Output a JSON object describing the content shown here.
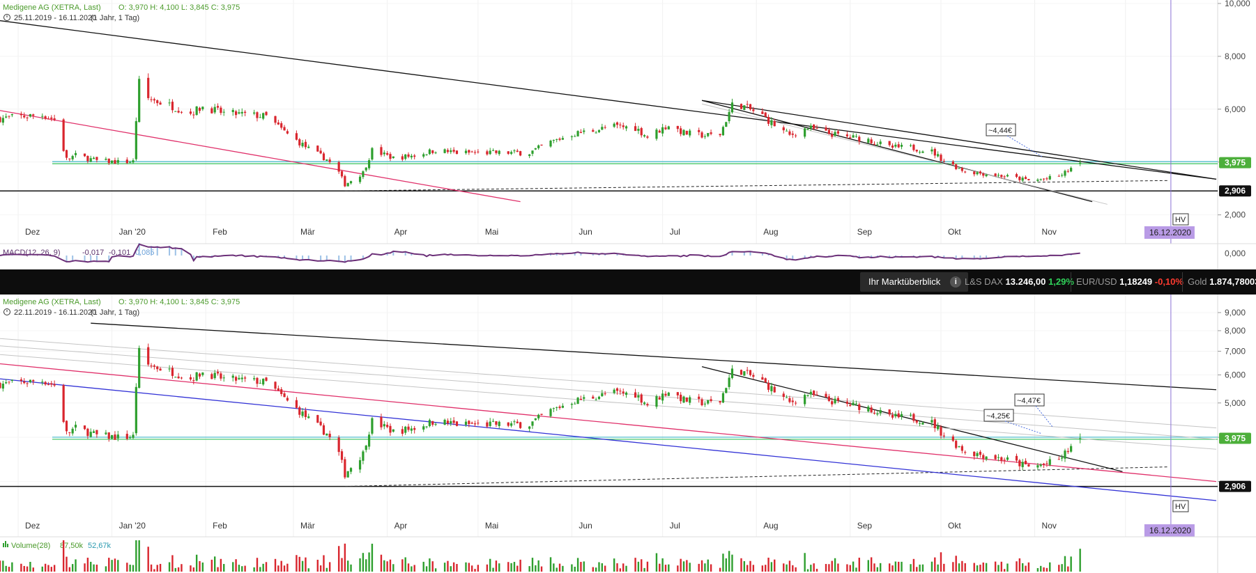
{
  "colors": {
    "up": "#2e9f2e",
    "down": "#d9262e",
    "trend_black": "#111111",
    "trend_pink": "#e0306a",
    "trend_blue": "#3232d6",
    "trend_gray": "#c4c4c4",
    "support_green": "#35c25a",
    "support_teal": "#3fb6c8",
    "vline": "#8a72d6",
    "hv_date_bg": "#b99be6",
    "volume_up": "#2e9f2e",
    "volume_down": "#d9262e",
    "macd_line": "#6b2f78",
    "macd_hist": "#9cc1e6"
  },
  "chart_data": [
    {
      "type": "candlestick",
      "instrument_label": "Medigene AG (XETRA, Last)",
      "ohlc_text": "O: 3,970  H: 4,100  L: 3,845  C: 3,975",
      "period_label": "25.11.2019 - 16.11.2020",
      "period_detail": "(1 Jahr, 1 Tag)",
      "ylim": [
        1.7,
        10.0
      ],
      "yticks": [
        2,
        4,
        6,
        8,
        10
      ],
      "ytick_labels": [
        "2,000",
        "",
        "6,000",
        "8,000",
        "10,000"
      ],
      "month_labels": [
        "Dez",
        "Jan '20",
        "Feb",
        "Mär",
        "Apr",
        "Mai",
        "Jun",
        "Jul",
        "Aug",
        "Sep",
        "Okt",
        "Nov"
      ],
      "last_price_label": "3,975",
      "last_price": 3.975,
      "low_label": "2,906",
      "low_price": 2.906,
      "annotations": [
        {
          "text": "~4,44€"
        }
      ],
      "hv_label": "HV",
      "hv_date": "16.12.2020",
      "macd_label": "MACD(12, 26, 9)",
      "macd_values": [
        "-0,017",
        "-0,101",
        "0,085"
      ],
      "macd_ytick_label": "0,000"
    },
    {
      "type": "candlestick",
      "instrument_label": "Medigene AG (XETRA, Last)",
      "ohlc_text": "O: 3,970  H: 4,100  L: 3,845  C: 3,975",
      "period_label": "22.11.2019 - 16.11.2020",
      "period_detail": "(1 Jahr, 1 Tag)",
      "scale": "log",
      "ylim": [
        2.65,
        9.5
      ],
      "yticks": [
        3,
        4,
        5,
        6,
        7,
        8,
        9
      ],
      "ytick_labels": [
        "",
        "",
        "5,000",
        "6,000",
        "7,000",
        "8,000",
        "9,000"
      ],
      "month_labels": [
        "Dez",
        "Jan '20",
        "Feb",
        "Mär",
        "Apr",
        "Mai",
        "Jun",
        "Jul",
        "Aug",
        "Sep",
        "Okt",
        "Nov"
      ],
      "last_price_label": "3,975",
      "last_price": 3.975,
      "low_label": "2,906",
      "low_price": 2.906,
      "annotations": [
        {
          "text": "~4,25€"
        },
        {
          "text": "~4,47€"
        }
      ],
      "hv_label": "HV",
      "hv_date": "16.12.2020",
      "volume_label": "Volume(28)",
      "volume_values": [
        "87,50k",
        "52,67k"
      ]
    }
  ],
  "price_path": [
    [
      "2019-11-25",
      5.65
    ],
    [
      "2019-12-02",
      5.72
    ],
    [
      "2019-12-09",
      5.78
    ],
    [
      "2019-12-13",
      5.6
    ],
    [
      "2019-12-17",
      4.1
    ],
    [
      "2019-12-20",
      4.25
    ],
    [
      "2019-12-27",
      4.05
    ],
    [
      "2020-01-03",
      4.0
    ],
    [
      "2020-01-08",
      4.02
    ],
    [
      "2020-01-09",
      5.6
    ],
    [
      "2020-01-10",
      7.0
    ],
    [
      "2020-01-13",
      6.4
    ],
    [
      "2020-01-20",
      6.15
    ],
    [
      "2020-01-27",
      5.85
    ],
    [
      "2020-01-31",
      6.1
    ],
    [
      "2020-02-07",
      5.85
    ],
    [
      "2020-02-14",
      5.8
    ],
    [
      "2020-02-21",
      5.72
    ],
    [
      "2020-02-28",
      5.05
    ],
    [
      "2020-03-06",
      4.5
    ],
    [
      "2020-03-12",
      4.1
    ],
    [
      "2020-03-16",
      3.6
    ],
    [
      "2020-03-18",
      3.15
    ],
    [
      "2020-03-20",
      3.3
    ],
    [
      "2020-03-24",
      3.6
    ],
    [
      "2020-03-27",
      4.45
    ],
    [
      "2020-04-03",
      4.15
    ],
    [
      "2020-04-10",
      4.25
    ],
    [
      "2020-04-17",
      4.45
    ],
    [
      "2020-04-24",
      4.35
    ],
    [
      "2020-05-04",
      4.35
    ],
    [
      "2020-05-11",
      4.35
    ],
    [
      "2020-05-18",
      4.35
    ],
    [
      "2020-05-25",
      4.75
    ],
    [
      "2020-06-01",
      5.05
    ],
    [
      "2020-06-08",
      5.2
    ],
    [
      "2020-06-15",
      5.35
    ],
    [
      "2020-06-22",
      5.3
    ],
    [
      "2020-06-26",
      4.95
    ],
    [
      "2020-07-03",
      5.4
    ],
    [
      "2020-07-08",
      5.1
    ],
    [
      "2020-07-15",
      5.0
    ],
    [
      "2020-07-20",
      5.05
    ],
    [
      "2020-07-24",
      6.15
    ],
    [
      "2020-07-27",
      6.15
    ],
    [
      "2020-08-03",
      5.75
    ],
    [
      "2020-08-07",
      5.4
    ],
    [
      "2020-08-12",
      5.0
    ],
    [
      "2020-08-18",
      5.3
    ],
    [
      "2020-08-24",
      5.1
    ],
    [
      "2020-08-31",
      4.95
    ],
    [
      "2020-09-07",
      4.85
    ],
    [
      "2020-09-14",
      4.55
    ],
    [
      "2020-09-21",
      4.55
    ],
    [
      "2020-09-28",
      4.4
    ],
    [
      "2020-10-02",
      4.05
    ],
    [
      "2020-10-09",
      3.65
    ],
    [
      "2020-10-16",
      3.55
    ],
    [
      "2020-10-23",
      3.45
    ],
    [
      "2020-10-30",
      3.3
    ],
    [
      "2020-11-04",
      3.35
    ],
    [
      "2020-11-09",
      3.45
    ],
    [
      "2020-11-13",
      3.75
    ],
    [
      "2020-11-16",
      3.975
    ]
  ],
  "trend_lines_1": [
    {
      "kind": "black",
      "points": [
        [
          "2019-11-25",
          9.35
        ],
        [
          "2020-12-31",
          3.35
        ]
      ]
    },
    {
      "kind": "black",
      "points": [
        [
          "2020-07-14",
          6.33
        ],
        [
          "2020-12-31",
          3.35
        ]
      ]
    },
    {
      "kind": "black",
      "points": [
        [
          "2020-07-14",
          6.33
        ],
        [
          "2020-11-20",
          2.5
        ]
      ]
    },
    {
      "kind": "pink",
      "points": [
        [
          "2019-11-25",
          5.95
        ],
        [
          "2020-05-15",
          2.5
        ]
      ]
    },
    {
      "kind": "gray",
      "points": [
        [
          "2020-07-14",
          6.2
        ],
        [
          "2020-11-25",
          2.4
        ]
      ]
    }
  ],
  "trend_lines_2": [
    {
      "kind": "black",
      "points": [
        [
          "2019-12-25",
          8.4
        ],
        [
          "2020-12-31",
          5.45
        ]
      ]
    },
    {
      "kind": "black",
      "points": [
        [
          "2020-07-14",
          6.33
        ],
        [
          "2020-11-30",
          3.2
        ]
      ]
    },
    {
      "kind": "pink",
      "points": [
        [
          "2019-11-25",
          6.45
        ],
        [
          "2020-12-31",
          3.0
        ]
      ]
    },
    {
      "kind": "blue",
      "points": [
        [
          "2019-11-25",
          5.85
        ],
        [
          "2020-12-31",
          2.65
        ]
      ]
    },
    {
      "kind": "gray",
      "points": [
        [
          "2019-11-25",
          7.6
        ],
        [
          "2020-12-31",
          4.25
        ]
      ]
    },
    {
      "kind": "gray",
      "points": [
        [
          "2019-11-25",
          7.25
        ],
        [
          "2020-12-31",
          3.95
        ]
      ]
    },
    {
      "kind": "gray",
      "points": [
        [
          "2019-11-25",
          6.85
        ],
        [
          "2020-12-31",
          3.7
        ]
      ]
    }
  ],
  "ticker": {
    "overview_label": "Ihr Marktüberblick",
    "info_icon": "i",
    "items": [
      {
        "name": "L&S DAX",
        "value": "13.246,00",
        "change": "1,29%",
        "direction": "up"
      },
      {
        "name": "EUR/USD",
        "value": "1,18249",
        "change": "-0,10%",
        "direction": "down"
      },
      {
        "name": "Gold",
        "value": "1.874,78003",
        "change": "",
        "direction": "up"
      }
    ]
  }
}
